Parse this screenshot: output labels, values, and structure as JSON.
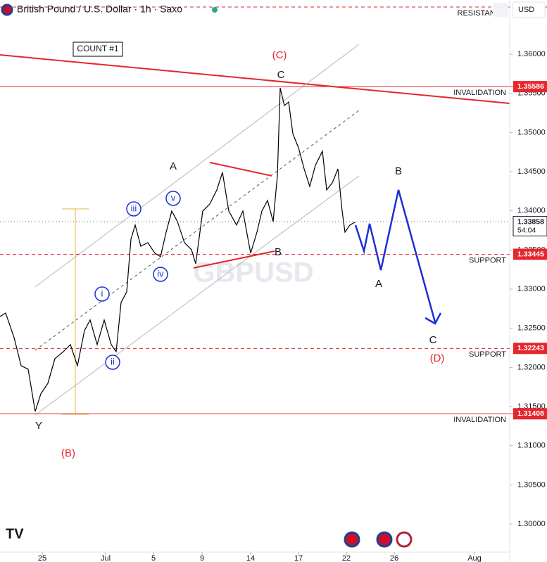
{
  "chart_data": {
    "type": "line",
    "title": "British Pound / U.S. Dollar · 1h · Saxo",
    "currency": "USD",
    "watermark": "GBPUSD",
    "series": [
      {
        "name": "GBPUSD",
        "color": "#000000",
        "x": [
          0,
          8,
          20,
          30,
          40,
          50,
          58,
          68,
          78,
          90,
          100,
          110,
          120,
          128,
          138,
          148,
          158,
          165,
          172,
          180,
          186,
          192,
          200,
          210,
          220,
          228,
          236,
          244,
          252,
          262,
          272,
          278,
          288,
          298,
          308,
          316,
          325,
          336,
          345,
          356,
          365,
          372,
          380,
          388,
          394,
          398,
          404,
          410,
          416,
          424,
          432,
          440,
          448,
          458,
          464,
          472,
          480,
          486,
          490,
          497,
          505
        ],
        "values": [
          1.3265,
          1.32695,
          1.32381,
          1.32022,
          1.31977,
          1.31438,
          1.31663,
          1.31797,
          1.32112,
          1.32201,
          1.32291,
          1.32022,
          1.32471,
          1.32606,
          1.32291,
          1.32606,
          1.32291,
          1.32201,
          1.3283,
          1.32965,
          1.33638,
          1.33818,
          1.33548,
          1.33593,
          1.33459,
          1.33414,
          1.33728,
          1.33997,
          1.33863,
          1.33593,
          1.33504,
          1.33324,
          1.33997,
          1.34087,
          1.34267,
          1.34491,
          1.33997,
          1.33818,
          1.33997,
          1.33459,
          1.33728,
          1.33997,
          1.34132,
          1.33863,
          1.34446,
          1.35569,
          1.35344,
          1.35389,
          1.34985,
          1.34806,
          1.34536,
          1.34312,
          1.34581,
          1.34761,
          1.34267,
          1.34357,
          1.34536,
          1.33997,
          1.33728,
          1.33818,
          1.33858
        ]
      }
    ],
    "last_price": 1.33858,
    "countdown": "54:04",
    "xlim": [
      0,
      724
    ],
    "xticks": [
      {
        "value": 60,
        "label": "25"
      },
      {
        "value": 150,
        "label": "Jul"
      },
      {
        "value": 218,
        "label": "5"
      },
      {
        "value": 287,
        "label": "9"
      },
      {
        "value": 356,
        "label": "14"
      },
      {
        "value": 424,
        "label": "17"
      },
      {
        "value": 492,
        "label": "22"
      },
      {
        "value": 560,
        "label": "26"
      },
      {
        "value": 674,
        "label": "Aug"
      }
    ],
    "ylim": [
      1.29641,
      1.36692
    ],
    "yticks": [
      {
        "value": 1.36,
        "label": "1.36000"
      },
      {
        "value": 1.355,
        "label": "1.35500"
      },
      {
        "value": 1.35,
        "label": "1.35000"
      },
      {
        "value": 1.345,
        "label": "1.34500"
      },
      {
        "value": 1.34,
        "label": "1.34000"
      },
      {
        "value": 1.335,
        "label": "1.33500"
      },
      {
        "value": 1.33,
        "label": "1.33000"
      },
      {
        "value": 1.325,
        "label": "1.32500"
      },
      {
        "value": 1.32,
        "label": "1.32000"
      },
      {
        "value": 1.315,
        "label": "1.31500"
      },
      {
        "value": 1.31,
        "label": "1.31000"
      },
      {
        "value": 1.305,
        "label": "1.30500"
      },
      {
        "value": 1.3,
        "label": "1.30000"
      }
    ],
    "levels": [
      {
        "name": "RESISTANCE",
        "value": 1.36602,
        "style": "dashed",
        "price_label": false
      },
      {
        "name": "INVALIDATION",
        "value": 1.35586,
        "style": "solid",
        "price_label": true
      },
      {
        "name": "SUPPORT",
        "value": 1.33445,
        "style": "dashed",
        "price_label": true
      },
      {
        "name": "SUPPORT",
        "value": 1.32243,
        "style": "dashed",
        "price_label": true
      },
      {
        "name": "INVALIDATION",
        "value": 1.31408,
        "style": "solid",
        "price_label": true
      }
    ],
    "level_color": "#e5262d",
    "annotations": [
      "COUNT #1",
      "(C)",
      "C",
      "A",
      "B",
      "Y",
      "(B)",
      "i",
      "ii",
      "iii",
      "iv",
      "v",
      "B",
      "A",
      "C",
      "(D)"
    ]
  }
}
